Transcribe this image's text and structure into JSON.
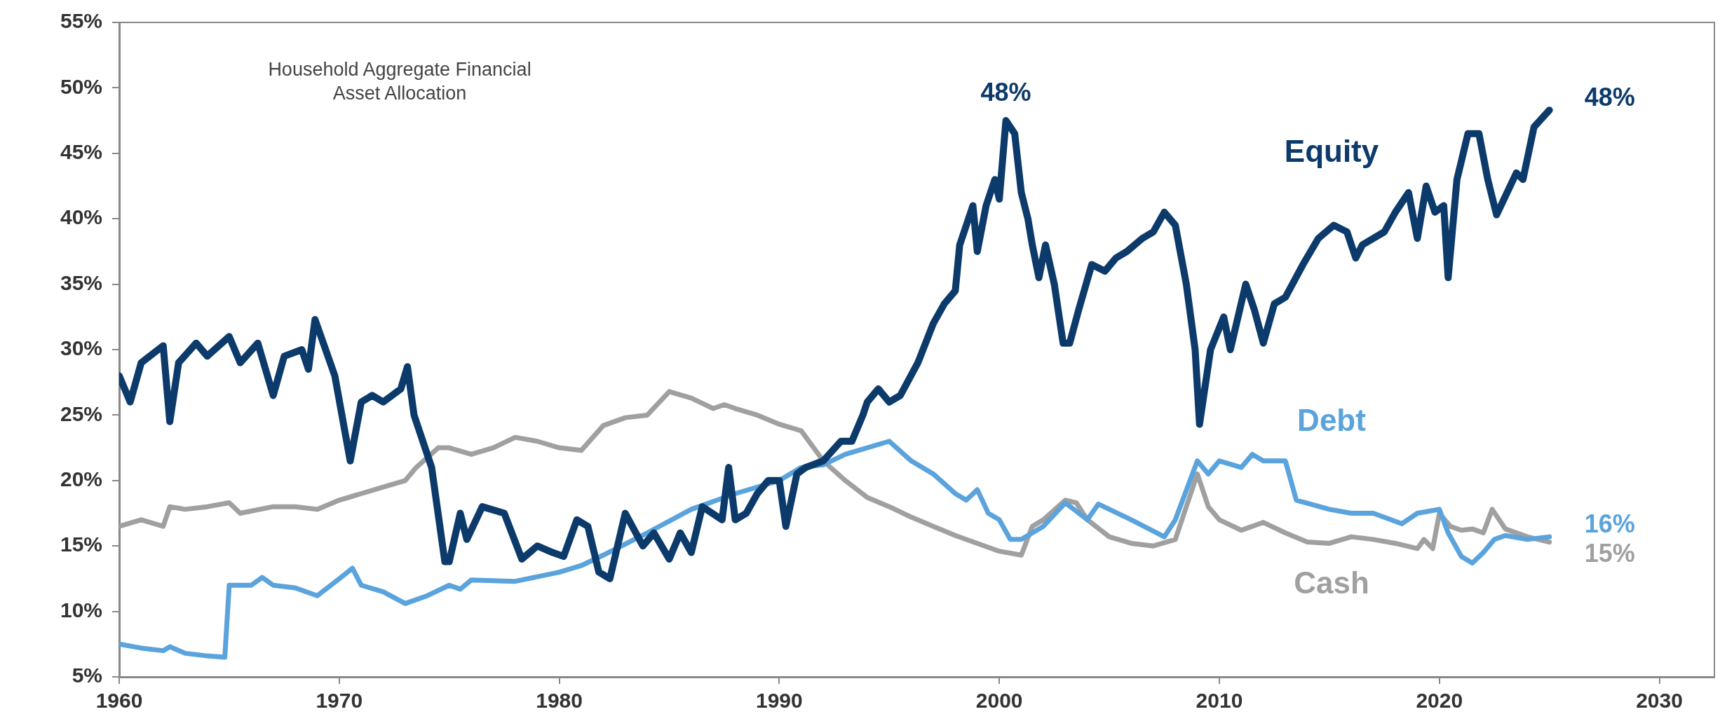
{
  "chart_data": {
    "type": "line",
    "title": "Household Aggregate Financial Asset Allocation",
    "xlim": [
      1960,
      2032.5
    ],
    "xticks": [
      1960,
      1970,
      1980,
      1990,
      2000,
      2010,
      2020,
      2030
    ],
    "ylim": [
      5,
      55
    ],
    "yticks": [
      {
        "value": 5,
        "label": "5%"
      },
      {
        "value": 10,
        "label": "10%"
      },
      {
        "value": 15,
        "label": "15%"
      },
      {
        "value": 20,
        "label": "20%"
      },
      {
        "value": 25,
        "label": "25%"
      },
      {
        "value": 30,
        "label": "30%"
      },
      {
        "value": 35,
        "label": "35%"
      },
      {
        "value": 40,
        "label": "40%"
      },
      {
        "value": 45,
        "label": "45%"
      },
      {
        "value": 50,
        "label": "50%"
      },
      {
        "value": 55,
        "label": "55%"
      }
    ],
    "grid": false,
    "legend": false,
    "marker": "none",
    "line_style": "solid",
    "series": [
      {
        "name": "Equity",
        "color": "#0b3a6b",
        "x": [
          1960,
          1960.5,
          1961,
          1962,
          1962.3,
          1962.7,
          1963.5,
          1964,
          1965,
          1965.5,
          1966.3,
          1967,
          1967.5,
          1968.3,
          1968.6,
          1968.9,
          1969.8,
          1970.5,
          1971,
          1971.5,
          1972,
          1972.8,
          1973.1,
          1973.4,
          1974.2,
          1974.8,
          1975,
          1975.5,
          1975.8,
          1976.5,
          1977.5,
          1978.3,
          1979,
          1979.7,
          1980.2,
          1980.8,
          1981.3,
          1981.8,
          1982.3,
          1983,
          1983.8,
          1984.3,
          1985,
          1985.5,
          1986,
          1986.5,
          1987.4,
          1987.7,
          1988,
          1988.5,
          1989,
          1989.5,
          1990,
          1990.3,
          1990.8,
          1991.2,
          1992,
          1992.8,
          1993.3,
          1993.8,
          1994,
          1994.5,
          1995,
          1995.5,
          1996.3,
          1997,
          1997.5,
          1998,
          1998.2,
          1998.8,
          1999,
          1999.4,
          1999.8,
          2000,
          2000.3,
          2000.7,
          2001,
          2001.3,
          2001.5,
          2001.8,
          2002.1,
          2002.5,
          2002.9,
          2003.2,
          2003.6,
          2004.2,
          2004.8,
          2005.3,
          2005.8,
          2006.5,
          2007,
          2007.5,
          2008,
          2008.5,
          2008.9,
          2009.1,
          2009.6,
          2010.2,
          2010.5,
          2011.2,
          2011.6,
          2012,
          2012.5,
          2013,
          2013.8,
          2014.5,
          2015.2,
          2015.8,
          2016.2,
          2016.5,
          2017.5,
          2018,
          2018.6,
          2019,
          2019.4,
          2019.8,
          2020.2,
          2020.4,
          2020.8,
          2021.3,
          2021.8,
          2022.2,
          2022.6,
          2023.5,
          2023.8,
          2024.3,
          2025
        ],
        "values": [
          28,
          26,
          29,
          30.3,
          24.5,
          29,
          30.5,
          29.5,
          31,
          29,
          30.5,
          26.5,
          29.5,
          30,
          28.5,
          32.3,
          28,
          21.5,
          26,
          26.5,
          26,
          27,
          28.7,
          25,
          21,
          13.8,
          13.8,
          17.5,
          15.5,
          18,
          17.5,
          14,
          15,
          14.5,
          14.2,
          17,
          16.5,
          13,
          12.5,
          17.5,
          15,
          16,
          14,
          16,
          14.5,
          18,
          17,
          21,
          17,
          17.5,
          19,
          20,
          20,
          16.5,
          20.5,
          21,
          21.5,
          23,
          23,
          25,
          26,
          27,
          26,
          26.5,
          29,
          32,
          33.5,
          34.5,
          38,
          41,
          37.5,
          41,
          43,
          41.5,
          47.5,
          46.5,
          42,
          40,
          38,
          35.5,
          38,
          35,
          30.5,
          30.5,
          33,
          36.5,
          36,
          37,
          37.5,
          38.5,
          39,
          40.5,
          39.5,
          35,
          30,
          24.3,
          30,
          32.5,
          30,
          35,
          33,
          30.5,
          33.5,
          34,
          36.5,
          38.5,
          39.5,
          39,
          37,
          38,
          39,
          40.5,
          42,
          38.5,
          42.5,
          40.5,
          41,
          35.5,
          43,
          46.5,
          46.5,
          43,
          40.3,
          43.5,
          43,
          47,
          48.3
        ],
        "value_labels": [
          null,
          null,
          null,
          null,
          null,
          null,
          null,
          null,
          null,
          null,
          null,
          null,
          null,
          null,
          null,
          null,
          null,
          null,
          null,
          null,
          null,
          null,
          null,
          null,
          null,
          null,
          null,
          null,
          null,
          null,
          null,
          null,
          null,
          null,
          null,
          null,
          null,
          null,
          null,
          null,
          null,
          null,
          null,
          null,
          null,
          null,
          null,
          null,
          null,
          null,
          null,
          null,
          null,
          null,
          null,
          null,
          null,
          null,
          null,
          null,
          null,
          null,
          null,
          null,
          null,
          null,
          null,
          null,
          null,
          null,
          null,
          null,
          null,
          null,
          "48%",
          null,
          null,
          null,
          null,
          null,
          null,
          null,
          null,
          null,
          null,
          null,
          null,
          null,
          null,
          null,
          null,
          null,
          null,
          null,
          null,
          null,
          null,
          null,
          null,
          null,
          null,
          null,
          null,
          null,
          null,
          null,
          null,
          null,
          null,
          null,
          null,
          null,
          null,
          null,
          null,
          null,
          null,
          null,
          null,
          null,
          null,
          null,
          null,
          null,
          null,
          null,
          "48%"
        ]
      },
      {
        "name": "Debt",
        "color": "#5aa3dc",
        "x": [
          1960,
          1961,
          1962,
          1962.3,
          1963,
          1964,
          1964.8,
          1965,
          1966,
          1966.5,
          1967,
          1968,
          1969,
          1970,
          1970.6,
          1971,
          1972,
          1973,
          1974,
          1975,
          1975.5,
          1976,
          1978,
          1980,
          1981,
          1982,
          1984,
          1986,
          1988,
          1990,
          1991,
          1992,
          1993,
          1995,
          1996,
          1997,
          1998,
          1998.5,
          1999,
          1999.5,
          2000,
          2000.5,
          2001,
          2002,
          2003,
          2004,
          2004.5,
          2006,
          2007.5,
          2008,
          2009,
          2009.5,
          2010,
          2011,
          2011.5,
          2012,
          2013,
          2013.5,
          2015,
          2016,
          2017,
          2018.3,
          2019,
          2020,
          2020.4,
          2021,
          2021.5,
          2022,
          2022.5,
          2023,
          2024,
          2025
        ],
        "values": [
          7.5,
          7.2,
          7,
          7.3,
          6.8,
          6.6,
          6.5,
          12,
          12,
          12.6,
          12,
          11.8,
          11.2,
          12.5,
          13.3,
          12,
          11.5,
          10.6,
          11.2,
          12,
          11.7,
          12.4,
          12.3,
          13,
          13.5,
          14.3,
          16,
          17.8,
          19,
          20,
          21,
          21.2,
          22,
          23,
          21.5,
          20.5,
          19,
          18.5,
          19.3,
          17.5,
          17,
          15.5,
          15.5,
          16.5,
          18.3,
          17,
          18.2,
          17,
          15.7,
          17,
          21.5,
          20.5,
          21.5,
          21,
          22,
          21.5,
          21.5,
          18.5,
          17.8,
          17.5,
          17.5,
          16.7,
          17.5,
          17.8,
          16,
          14.2,
          13.7,
          14.5,
          15.5,
          15.8,
          15.5,
          15.7
        ],
        "value_labels": [
          null,
          null,
          null,
          null,
          null,
          null,
          null,
          null,
          null,
          null,
          null,
          null,
          null,
          null,
          null,
          null,
          null,
          null,
          null,
          null,
          null,
          null,
          null,
          null,
          null,
          null,
          null,
          null,
          null,
          null,
          null,
          null,
          null,
          null,
          null,
          null,
          null,
          null,
          null,
          null,
          null,
          null,
          null,
          null,
          null,
          null,
          null,
          null,
          null,
          null,
          null,
          null,
          null,
          null,
          null,
          null,
          null,
          null,
          null,
          null,
          null,
          null,
          null,
          null,
          null,
          null,
          null,
          null,
          null,
          null,
          null,
          "16%"
        ]
      },
      {
        "name": "Cash",
        "color": "#a0a0a0",
        "x": [
          1960,
          1961,
          1962,
          1962.3,
          1963,
          1964,
          1965,
          1965.5,
          1967,
          1968,
          1969,
          1970,
          1971,
          1972,
          1973,
          1973.5,
          1974.5,
          1975,
          1976,
          1977,
          1978,
          1979,
          1980,
          1981,
          1982,
          1983,
          1984,
          1985,
          1986,
          1987,
          1987.5,
          1988,
          1989,
          1990,
          1991,
          1992,
          1993,
          1994,
          1995,
          1996,
          1997,
          1998,
          1999,
          2000,
          2001,
          2001.5,
          2002,
          2003,
          2003.5,
          2004,
          2005,
          2006,
          2007,
          2008,
          2009,
          2009.5,
          2010,
          2011,
          2012,
          2013,
          2014,
          2015,
          2016,
          2017,
          2018,
          2019,
          2019.3,
          2019.7,
          2020,
          2020.5,
          2021,
          2021.5,
          2022,
          2022.4,
          2023,
          2024,
          2025
        ],
        "values": [
          16.5,
          17,
          16.5,
          18,
          17.8,
          18,
          18.3,
          17.5,
          18,
          18,
          17.8,
          18.5,
          19,
          19.5,
          20,
          21,
          22.5,
          22.5,
          22,
          22.5,
          23.3,
          23,
          22.5,
          22.3,
          24.2,
          24.8,
          25,
          26.8,
          26.3,
          25.5,
          25.8,
          25.5,
          25,
          24.3,
          23.8,
          21.5,
          20,
          18.7,
          18,
          17.2,
          16.5,
          15.8,
          15.2,
          14.6,
          14.3,
          16.5,
          17,
          18.5,
          18.3,
          17,
          15.7,
          15.2,
          15,
          15.5,
          20.5,
          18,
          17,
          16.2,
          16.8,
          16,
          15.3,
          15.2,
          15.7,
          15.5,
          15.2,
          14.8,
          15.5,
          14.8,
          17.5,
          16.5,
          16.2,
          16.3,
          16,
          17.8,
          16.3,
          15.7,
          15.3
        ],
        "value_labels": [
          null,
          null,
          null,
          null,
          null,
          null,
          null,
          null,
          null,
          null,
          null,
          null,
          null,
          null,
          null,
          null,
          null,
          null,
          null,
          null,
          null,
          null,
          null,
          null,
          null,
          null,
          null,
          null,
          null,
          null,
          null,
          null,
          null,
          null,
          null,
          null,
          null,
          null,
          null,
          null,
          null,
          null,
          null,
          null,
          null,
          null,
          null,
          null,
          null,
          null,
          null,
          null,
          null,
          null,
          null,
          null,
          null,
          null,
          null,
          null,
          null,
          null,
          null,
          null,
          null,
          null,
          null,
          null,
          null,
          null,
          null,
          null,
          null,
          null,
          null,
          null,
          "15%"
        ]
      }
    ]
  }
}
